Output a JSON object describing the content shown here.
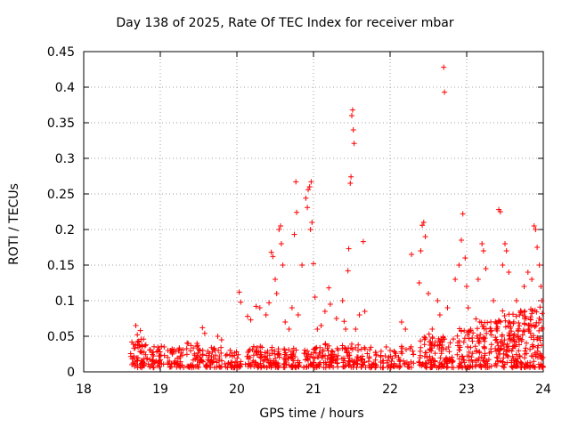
{
  "chart_data": {
    "type": "scatter",
    "title": "Day 138 of 2025, Rate Of TEC Index for receiver mbar",
    "xlabel": "GPS time / hours",
    "ylabel": "ROTI / TECUs",
    "xlim": [
      18,
      24
    ],
    "ylim": [
      0,
      0.45
    ],
    "xticks": [
      "18",
      "19",
      "20",
      "21",
      "22",
      "23",
      "24"
    ],
    "yticks": [
      "0",
      "0.05",
      "0.1",
      "0.15",
      "0.2",
      "0.25",
      "0.3",
      "0.35",
      "0.4",
      "0.45"
    ],
    "grid": true,
    "marker": "+",
    "color": "#ff0000",
    "series": [
      {
        "name": "ROTI",
        "points": [
          [
            18.68,
            0.065
          ],
          [
            18.7,
            0.052
          ],
          [
            18.72,
            0.042
          ],
          [
            18.74,
            0.058
          ],
          [
            18.76,
            0.036
          ],
          [
            18.78,
            0.046
          ],
          [
            19.05,
            0.035
          ],
          [
            19.1,
            0.03
          ],
          [
            19.4,
            0.037
          ],
          [
            19.55,
            0.062
          ],
          [
            19.58,
            0.054
          ],
          [
            19.75,
            0.05
          ],
          [
            19.8,
            0.045
          ],
          [
            20.03,
            0.112
          ],
          [
            20.05,
            0.098
          ],
          [
            20.14,
            0.078
          ],
          [
            20.18,
            0.073
          ],
          [
            20.25,
            0.092
          ],
          [
            20.3,
            0.09
          ],
          [
            20.38,
            0.08
          ],
          [
            20.42,
            0.097
          ],
          [
            20.45,
            0.168
          ],
          [
            20.47,
            0.162
          ],
          [
            20.5,
            0.13
          ],
          [
            20.52,
            0.11
          ],
          [
            20.55,
            0.2
          ],
          [
            20.57,
            0.205
          ],
          [
            20.58,
            0.18
          ],
          [
            20.6,
            0.15
          ],
          [
            20.63,
            0.07
          ],
          [
            20.68,
            0.06
          ],
          [
            20.72,
            0.09
          ],
          [
            20.75,
            0.193
          ],
          [
            20.77,
            0.267
          ],
          [
            20.78,
            0.224
          ],
          [
            20.8,
            0.08
          ],
          [
            20.85,
            0.15
          ],
          [
            20.9,
            0.244
          ],
          [
            20.92,
            0.231
          ],
          [
            20.93,
            0.256
          ],
          [
            20.95,
            0.26
          ],
          [
            20.97,
            0.267
          ],
          [
            20.96,
            0.2
          ],
          [
            20.98,
            0.21
          ],
          [
            21.0,
            0.152
          ],
          [
            21.02,
            0.105
          ],
          [
            21.05,
            0.06
          ],
          [
            21.1,
            0.065
          ],
          [
            21.15,
            0.085
          ],
          [
            21.2,
            0.118
          ],
          [
            21.22,
            0.095
          ],
          [
            21.3,
            0.075
          ],
          [
            21.38,
            0.1
          ],
          [
            21.4,
            0.071
          ],
          [
            21.42,
            0.06
          ],
          [
            21.45,
            0.142
          ],
          [
            21.46,
            0.173
          ],
          [
            21.48,
            0.265
          ],
          [
            21.49,
            0.274
          ],
          [
            21.5,
            0.36
          ],
          [
            21.51,
            0.368
          ],
          [
            21.52,
            0.34
          ],
          [
            21.53,
            0.321
          ],
          [
            21.55,
            0.06
          ],
          [
            21.6,
            0.08
          ],
          [
            21.65,
            0.183
          ],
          [
            21.67,
            0.085
          ],
          [
            21.95,
            0.035
          ],
          [
            22.0,
            0.03
          ],
          [
            22.15,
            0.07
          ],
          [
            22.2,
            0.06
          ],
          [
            22.28,
            0.165
          ],
          [
            22.38,
            0.125
          ],
          [
            22.4,
            0.17
          ],
          [
            22.42,
            0.206
          ],
          [
            22.44,
            0.21
          ],
          [
            22.46,
            0.19
          ],
          [
            22.5,
            0.11
          ],
          [
            22.55,
            0.06
          ],
          [
            22.62,
            0.1
          ],
          [
            22.65,
            0.08
          ],
          [
            22.7,
            0.428
          ],
          [
            22.71,
            0.393
          ],
          [
            22.75,
            0.09
          ],
          [
            22.85,
            0.13
          ],
          [
            22.9,
            0.15
          ],
          [
            22.93,
            0.185
          ],
          [
            22.95,
            0.222
          ],
          [
            22.98,
            0.16
          ],
          [
            23.0,
            0.12
          ],
          [
            23.02,
            0.09
          ],
          [
            23.15,
            0.13
          ],
          [
            23.2,
            0.18
          ],
          [
            23.22,
            0.17
          ],
          [
            23.25,
            0.145
          ],
          [
            23.35,
            0.1
          ],
          [
            23.42,
            0.228
          ],
          [
            23.44,
            0.225
          ],
          [
            23.47,
            0.15
          ],
          [
            23.5,
            0.18
          ],
          [
            23.52,
            0.17
          ],
          [
            23.55,
            0.14
          ],
          [
            23.65,
            0.1
          ],
          [
            23.75,
            0.12
          ],
          [
            23.8,
            0.14
          ],
          [
            23.85,
            0.13
          ],
          [
            23.88,
            0.205
          ],
          [
            23.9,
            0.2
          ],
          [
            23.92,
            0.175
          ],
          [
            23.95,
            0.15
          ],
          [
            23.97,
            0.12
          ],
          [
            23.98,
            0.1
          ]
        ],
        "clusters": [
          {
            "center": 18.72,
            "ymax": 0.04,
            "count": 55
          },
          {
            "center": 18.95,
            "ymax": 0.03,
            "count": 40
          },
          {
            "center": 19.2,
            "ymax": 0.028,
            "count": 40
          },
          {
            "center": 19.45,
            "ymax": 0.035,
            "count": 45
          },
          {
            "center": 19.7,
            "ymax": 0.03,
            "count": 45
          },
          {
            "center": 19.95,
            "ymax": 0.025,
            "count": 40
          },
          {
            "center": 20.22,
            "ymax": 0.03,
            "count": 45
          },
          {
            "center": 20.45,
            "ymax": 0.03,
            "count": 50
          },
          {
            "center": 20.72,
            "ymax": 0.03,
            "count": 50
          },
          {
            "center": 20.98,
            "ymax": 0.03,
            "count": 50
          },
          {
            "center": 21.22,
            "ymax": 0.035,
            "count": 50
          },
          {
            "center": 21.48,
            "ymax": 0.035,
            "count": 50
          },
          {
            "center": 21.72,
            "ymax": 0.03,
            "count": 40
          },
          {
            "center": 21.98,
            "ymax": 0.025,
            "count": 35
          },
          {
            "center": 22.2,
            "ymax": 0.03,
            "count": 30
          },
          {
            "center": 22.48,
            "ymax": 0.05,
            "count": 60
          },
          {
            "center": 22.72,
            "ymax": 0.05,
            "count": 60
          },
          {
            "center": 22.98,
            "ymax": 0.055,
            "count": 60
          },
          {
            "center": 23.22,
            "ymax": 0.07,
            "count": 70
          },
          {
            "center": 23.48,
            "ymax": 0.08,
            "count": 80
          },
          {
            "center": 23.7,
            "ymax": 0.08,
            "count": 90
          },
          {
            "center": 23.92,
            "ymax": 0.085,
            "count": 90
          }
        ]
      }
    ]
  }
}
